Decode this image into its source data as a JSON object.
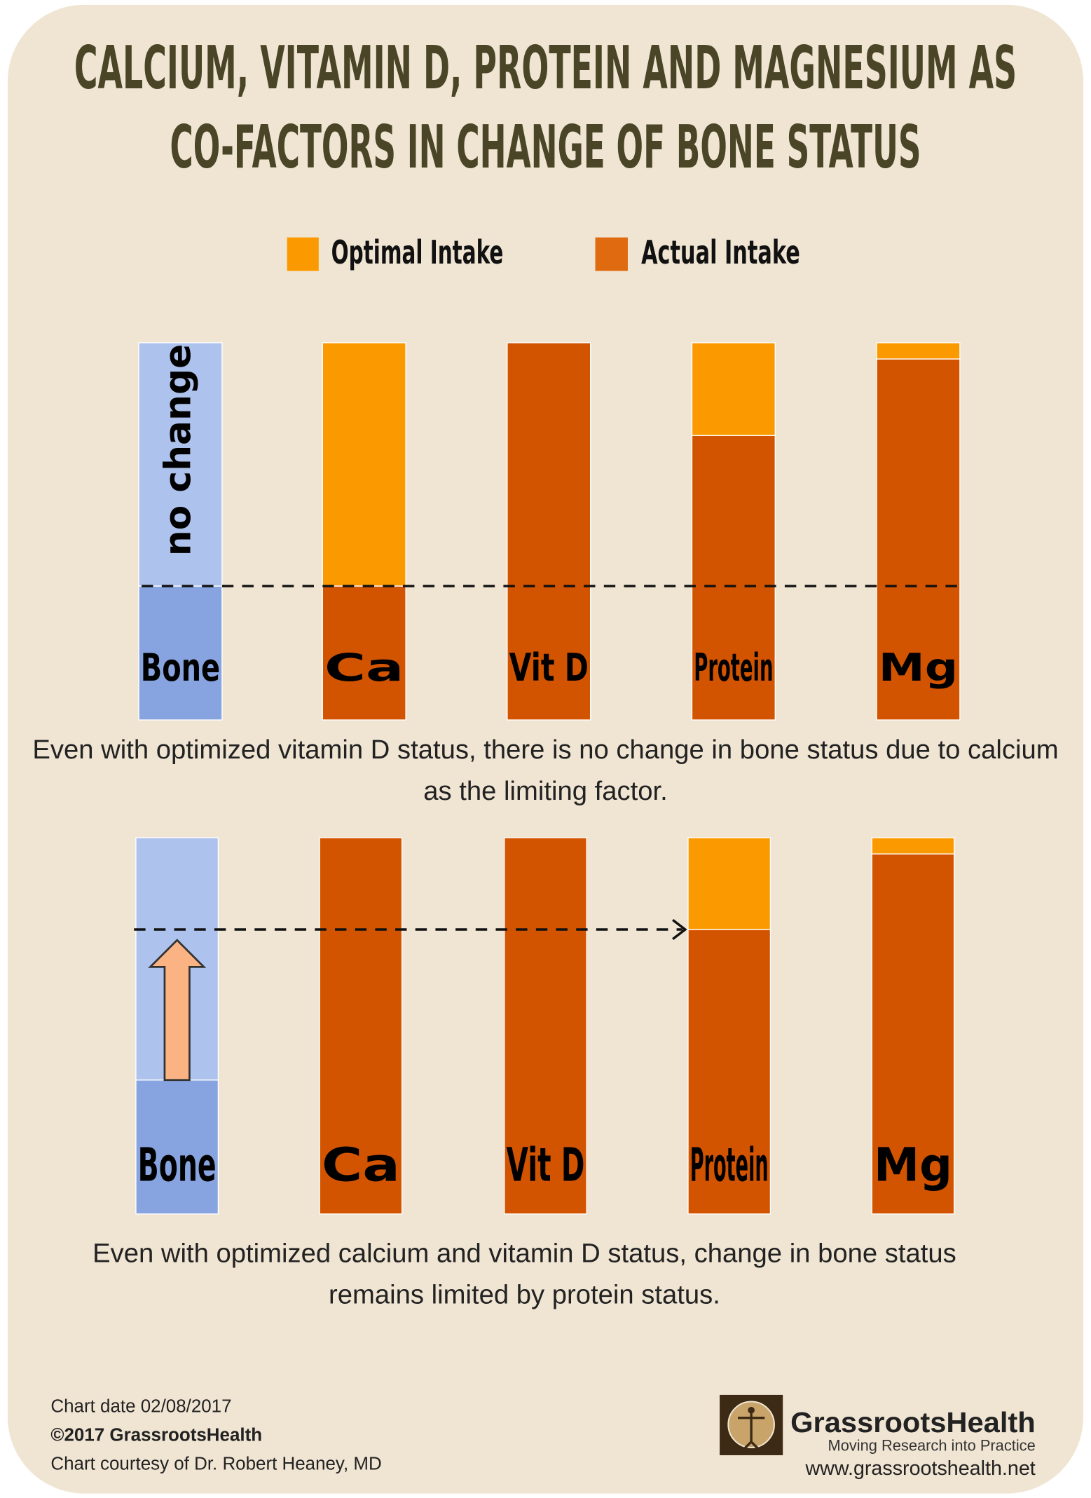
{
  "title_lines": [
    "CALCIUM, VITAMIN D, PROTEIN AND MAGNESIUM AS",
    "CO-FACTORS IN CHANGE OF BONE STATUS"
  ],
  "chart_data": [
    {
      "type": "bar",
      "stacked": true,
      "categories": [
        "Bone",
        "Ca",
        "Vit D",
        "Protein",
        "Mg"
      ],
      "ylim": [
        0,
        100
      ],
      "bone": {
        "values": [
          35.5,
          64.5
        ],
        "colors": [
          "#87a4e0",
          "#adc2ec"
        ]
      },
      "series": [
        {
          "name": "Actual Intake",
          "color": "#d35400",
          "values": [
            null,
            35.5,
            100,
            75.4,
            95.7
          ]
        },
        {
          "name": "Optimal Intake",
          "color": "#fb9a00",
          "values": [
            null,
            64.5,
            0,
            24.6,
            4.3
          ]
        }
      ],
      "annotation": "no change",
      "caption_lines": [
        "Even with optimized vitamin D status, there is no change in bone status due to calcium",
        "as the limiting factor."
      ]
    },
    {
      "type": "bar",
      "stacked": true,
      "categories": [
        "Bone",
        "Ca",
        "Vit D",
        "Protein",
        "Mg"
      ],
      "ylim": [
        0,
        100
      ],
      "bone": {
        "values": [
          35.6,
          64.4
        ],
        "colors": [
          "#87a4e0",
          "#adc2ec"
        ]
      },
      "series": [
        {
          "color": "#d35400",
          "values": [
            null,
            100,
            100,
            75.6,
            95.7
          ]
        },
        {
          "color": "#fb9a00",
          "values": [
            null,
            0,
            0,
            24.4,
            4.3
          ]
        }
      ],
      "caption_lines": [
        "Even with optimized calcium and vitamin D status, change in bone status",
        "remains limited by protein status."
      ]
    }
  ],
  "footer": {
    "chart_date": "Chart date 02/08/2017",
    "copyright": "©2017 GrassrootsHealth",
    "courtesy": "Chart courtesy of Dr. Robert Heaney, MD",
    "brand": "GrassrootsHealth",
    "tagline": "Moving Research into Practice",
    "url": "www.grassrootshealth.net"
  }
}
